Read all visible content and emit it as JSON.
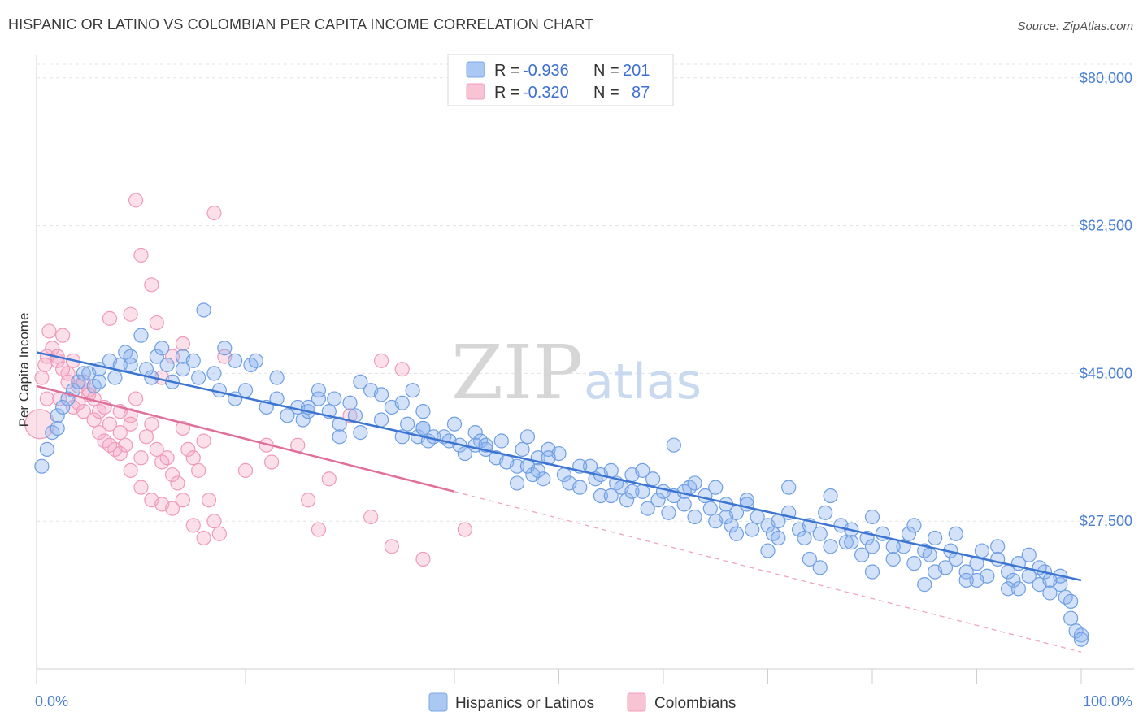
{
  "title": "HISPANIC OR LATINO VS COLOMBIAN PER CAPITA INCOME CORRELATION CHART",
  "source": "Source: ZipAtlas.com",
  "watermark": {
    "zip": "ZIP",
    "atlas": "atlas"
  },
  "legend_top": {
    "rows": [
      {
        "r_label": "R =",
        "r_value": "-0.936",
        "n_label": "N =",
        "n_value": "201",
        "color": "#7aa8e8"
      },
      {
        "r_label": "R =",
        "r_value": "-0.320",
        "n_label": "N =",
        "n_value": "87",
        "color": "#f19cb8"
      }
    ]
  },
  "chart_data": {
    "type": "scatter",
    "title": "HISPANIC OR LATINO VS COLOMBIAN PER CAPITA INCOME CORRELATION CHART",
    "xlabel": "",
    "ylabel": "Per Capita Income",
    "xlim": [
      0,
      100
    ],
    "ylim": [
      10000,
      82000
    ],
    "x_tick_labels": [
      "0.0%",
      "100.0%"
    ],
    "y_ticks": [
      27500,
      45000,
      62500,
      80000
    ],
    "y_tick_labels": [
      "$27,500",
      "$45,000",
      "$62,500",
      "$80,000"
    ],
    "grid": "horizontal dashed",
    "legend_placement": "bottom",
    "colors": {
      "hispanic": "#5b8fe0",
      "colombian": "#ee8cae",
      "hispanic_line": "#3b74d1",
      "colombian_line": "#e0709a"
    },
    "series": [
      {
        "name": "Hispanics or Latinos",
        "trend": {
          "x": [
            0,
            100
          ],
          "y": [
            47500,
            20500
          ]
        },
        "points": [
          [
            0.5,
            34000
          ],
          [
            1,
            36000
          ],
          [
            1.5,
            38000
          ],
          [
            2,
            40000
          ],
          [
            2.5,
            41000
          ],
          [
            3,
            42000
          ],
          [
            3.5,
            43000
          ],
          [
            4,
            44000
          ],
          [
            4.5,
            45000
          ],
          [
            5,
            45000
          ],
          [
            5.5,
            43500
          ],
          [
            6,
            45500
          ],
          [
            7,
            46500
          ],
          [
            7.5,
            44500
          ],
          [
            8,
            46000
          ],
          [
            8.5,
            47500
          ],
          [
            9,
            46000
          ],
          [
            10,
            49500
          ],
          [
            10.5,
            45500
          ],
          [
            11,
            44500
          ],
          [
            11.5,
            47000
          ],
          [
            12,
            48000
          ],
          [
            12.5,
            46000
          ],
          [
            13,
            44000
          ],
          [
            14,
            47000
          ],
          [
            15,
            46500
          ],
          [
            15.5,
            44500
          ],
          [
            16,
            52500
          ],
          [
            17,
            45000
          ],
          [
            17.5,
            43000
          ],
          [
            18,
            48000
          ],
          [
            19,
            42000
          ],
          [
            20,
            43000
          ],
          [
            20.5,
            46000
          ],
          [
            21,
            46500
          ],
          [
            22,
            41000
          ],
          [
            23,
            42000
          ],
          [
            24,
            40000
          ],
          [
            25,
            41000
          ],
          [
            25.5,
            39500
          ],
          [
            26,
            40500
          ],
          [
            27,
            42000
          ],
          [
            28,
            40500
          ],
          [
            28.5,
            42000
          ],
          [
            29,
            39000
          ],
          [
            30,
            41500
          ],
          [
            30.5,
            40000
          ],
          [
            31,
            38000
          ],
          [
            32,
            43000
          ],
          [
            33,
            39500
          ],
          [
            34,
            41000
          ],
          [
            35,
            37500
          ],
          [
            35.5,
            39000
          ],
          [
            36,
            43000
          ],
          [
            36.5,
            37500
          ],
          [
            37,
            38500
          ],
          [
            37.5,
            37000
          ],
          [
            38,
            37500
          ],
          [
            39,
            37500
          ],
          [
            39.5,
            37000
          ],
          [
            40,
            39000
          ],
          [
            40.5,
            36500
          ],
          [
            41,
            35500
          ],
          [
            42,
            38000
          ],
          [
            42.5,
            37000
          ],
          [
            43,
            36000
          ],
          [
            44,
            35000
          ],
          [
            44.5,
            37000
          ],
          [
            45,
            34500
          ],
          [
            46,
            34000
          ],
          [
            46.5,
            36000
          ],
          [
            47,
            37500
          ],
          [
            47.5,
            33000
          ],
          [
            48,
            35000
          ],
          [
            48.5,
            32500
          ],
          [
            49,
            36000
          ],
          [
            50,
            35500
          ],
          [
            50.5,
            33000
          ],
          [
            51,
            32000
          ],
          [
            52,
            31500
          ],
          [
            53,
            34000
          ],
          [
            53.5,
            32500
          ],
          [
            54,
            30500
          ],
          [
            55,
            33500
          ],
          [
            55.5,
            32000
          ],
          [
            56,
            31500
          ],
          [
            56.5,
            30000
          ],
          [
            57,
            33000
          ],
          [
            58,
            31000
          ],
          [
            58.5,
            29000
          ],
          [
            59,
            32500
          ],
          [
            59.5,
            30000
          ],
          [
            60,
            31000
          ],
          [
            60.5,
            28500
          ],
          [
            61,
            30500
          ],
          [
            62,
            29500
          ],
          [
            62.5,
            31500
          ],
          [
            63,
            28000
          ],
          [
            64,
            30500
          ],
          [
            64.5,
            29000
          ],
          [
            65,
            27500
          ],
          [
            66,
            29500
          ],
          [
            66.5,
            27000
          ],
          [
            67,
            28500
          ],
          [
            68,
            30000
          ],
          [
            68.5,
            26500
          ],
          [
            69,
            28000
          ],
          [
            70,
            27000
          ],
          [
            70.5,
            26000
          ],
          [
            71,
            27500
          ],
          [
            72,
            28500
          ],
          [
            73,
            26500
          ],
          [
            73.5,
            25500
          ],
          [
            74,
            27000
          ],
          [
            75,
            26000
          ],
          [
            75.5,
            28500
          ],
          [
            76,
            24500
          ],
          [
            77,
            27000
          ],
          [
            77.5,
            25000
          ],
          [
            78,
            26500
          ],
          [
            79,
            23500
          ],
          [
            79.5,
            25500
          ],
          [
            80,
            24500
          ],
          [
            81,
            26000
          ],
          [
            82,
            23000
          ],
          [
            83,
            24500
          ],
          [
            83.5,
            26000
          ],
          [
            84,
            22500
          ],
          [
            85,
            24000
          ],
          [
            85.5,
            23500
          ],
          [
            86,
            25500
          ],
          [
            87,
            22000
          ],
          [
            87.5,
            24000
          ],
          [
            88,
            23000
          ],
          [
            89,
            21500
          ],
          [
            90,
            22500
          ],
          [
            90.5,
            24000
          ],
          [
            91,
            21000
          ],
          [
            92,
            23000
          ],
          [
            93,
            21500
          ],
          [
            93.5,
            20500
          ],
          [
            94,
            22500
          ],
          [
            95,
            21000
          ],
          [
            96,
            20000
          ],
          [
            96.5,
            21500
          ],
          [
            97,
            19000
          ],
          [
            98,
            20000
          ],
          [
            98.5,
            18500
          ],
          [
            99,
            16000
          ],
          [
            99.5,
            14500
          ],
          [
            100,
            14000
          ],
          [
            2,
            38500
          ],
          [
            6,
            44000
          ],
          [
            9,
            47000
          ],
          [
            14,
            45500
          ],
          [
            19,
            46500
          ],
          [
            26,
            41000
          ],
          [
            31,
            44000
          ],
          [
            37,
            38500
          ],
          [
            42,
            36500
          ],
          [
            47,
            34000
          ],
          [
            52,
            34000
          ],
          [
            57,
            31000
          ],
          [
            61,
            36500
          ],
          [
            65,
            31500
          ],
          [
            68,
            29500
          ],
          [
            72,
            31500
          ],
          [
            76,
            30500
          ],
          [
            80,
            28000
          ],
          [
            84,
            27000
          ],
          [
            88,
            26000
          ],
          [
            92,
            24500
          ],
          [
            95,
            23500
          ],
          [
            98,
            21000
          ],
          [
            46,
            32000
          ],
          [
            48,
            33500
          ],
          [
            55,
            30500
          ],
          [
            63,
            32000
          ],
          [
            67,
            26000
          ],
          [
            71,
            25500
          ],
          [
            74,
            23000
          ],
          [
            78,
            25000
          ],
          [
            82,
            24500
          ],
          [
            86,
            21500
          ],
          [
            90,
            20500
          ],
          [
            94,
            19500
          ],
          [
            97,
            20500
          ],
          [
            99,
            18000
          ],
          [
            100,
            13500
          ],
          [
            33,
            42500
          ],
          [
            35,
            41500
          ],
          [
            27,
            43000
          ],
          [
            23,
            44500
          ],
          [
            29,
            37500
          ],
          [
            37,
            40500
          ],
          [
            43,
            36500
          ],
          [
            49,
            35000
          ],
          [
            54,
            33000
          ],
          [
            58,
            33500
          ],
          [
            62,
            31000
          ],
          [
            66,
            28000
          ],
          [
            70,
            24000
          ],
          [
            75,
            22000
          ],
          [
            80,
            21500
          ],
          [
            85,
            20000
          ],
          [
            89,
            20500
          ],
          [
            93,
            19500
          ],
          [
            96,
            22000
          ]
        ]
      },
      {
        "name": "Colombians",
        "trend": {
          "x": [
            0,
            40
          ],
          "y": [
            43500,
            31000
          ]
        },
        "trend_extension": {
          "x": [
            40,
            100
          ],
          "y": [
            31000,
            12000
          ]
        },
        "points": [
          [
            0.3,
            39000
          ],
          [
            0.5,
            44500
          ],
          [
            0.8,
            46000
          ],
          [
            1,
            47000
          ],
          [
            1.2,
            50000
          ],
          [
            1.5,
            48000
          ],
          [
            2,
            46500
          ],
          [
            2.2,
            42000
          ],
          [
            2.5,
            49500
          ],
          [
            3,
            44000
          ],
          [
            3.5,
            41000
          ],
          [
            4,
            43500
          ],
          [
            4.5,
            40500
          ],
          [
            5,
            42500
          ],
          [
            5.5,
            39500
          ],
          [
            6,
            38000
          ],
          [
            6.5,
            37000
          ],
          [
            7,
            39000
          ],
          [
            7.5,
            36000
          ],
          [
            8,
            38000
          ],
          [
            8.5,
            36500
          ],
          [
            9,
            40000
          ],
          [
            9.5,
            42000
          ],
          [
            10,
            35000
          ],
          [
            10.5,
            37500
          ],
          [
            11,
            39000
          ],
          [
            11.5,
            36000
          ],
          [
            12,
            34500
          ],
          [
            12.5,
            35000
          ],
          [
            13,
            33000
          ],
          [
            13.5,
            32000
          ],
          [
            14,
            38500
          ],
          [
            14.5,
            36000
          ],
          [
            15,
            35000
          ],
          [
            15.5,
            33500
          ],
          [
            16,
            37000
          ],
          [
            16.5,
            30000
          ],
          [
            17,
            27500
          ],
          [
            17.5,
            26000
          ],
          [
            9.5,
            65500
          ],
          [
            10,
            59000
          ],
          [
            11,
            55500
          ],
          [
            7,
            51500
          ],
          [
            9,
            52000
          ],
          [
            11.5,
            51000
          ],
          [
            13,
            47000
          ],
          [
            14,
            48500
          ],
          [
            17,
            64000
          ],
          [
            18,
            47000
          ],
          [
            2,
            47000
          ],
          [
            3,
            45000
          ],
          [
            4,
            41500
          ],
          [
            5,
            43000
          ],
          [
            6,
            40500
          ],
          [
            7,
            36500
          ],
          [
            8,
            35500
          ],
          [
            9,
            33500
          ],
          [
            10,
            31500
          ],
          [
            11,
            30000
          ],
          [
            12,
            29500
          ],
          [
            13,
            29000
          ],
          [
            14,
            30000
          ],
          [
            15,
            27000
          ],
          [
            16,
            25500
          ],
          [
            20,
            33500
          ],
          [
            22,
            36500
          ],
          [
            22.5,
            34500
          ],
          [
            25,
            36500
          ],
          [
            26,
            30000
          ],
          [
            28,
            32500
          ],
          [
            30,
            40000
          ],
          [
            32,
            28000
          ],
          [
            34,
            24500
          ],
          [
            37,
            23000
          ],
          [
            41,
            26500
          ],
          [
            1,
            42000
          ],
          [
            2.5,
            45500
          ],
          [
            3.5,
            46500
          ],
          [
            4.5,
            44000
          ],
          [
            5.5,
            42000
          ],
          [
            6.5,
            41000
          ],
          [
            8,
            40500
          ],
          [
            9,
            39000
          ],
          [
            27,
            26500
          ],
          [
            33,
            46500
          ],
          [
            35,
            45500
          ],
          [
            12,
            44500
          ]
        ]
      }
    ]
  },
  "bottom_legend": [
    {
      "label": "Hispanics or Latinos",
      "color": "#7aa8e8"
    },
    {
      "label": "Colombians",
      "color": "#f19cb8"
    }
  ]
}
